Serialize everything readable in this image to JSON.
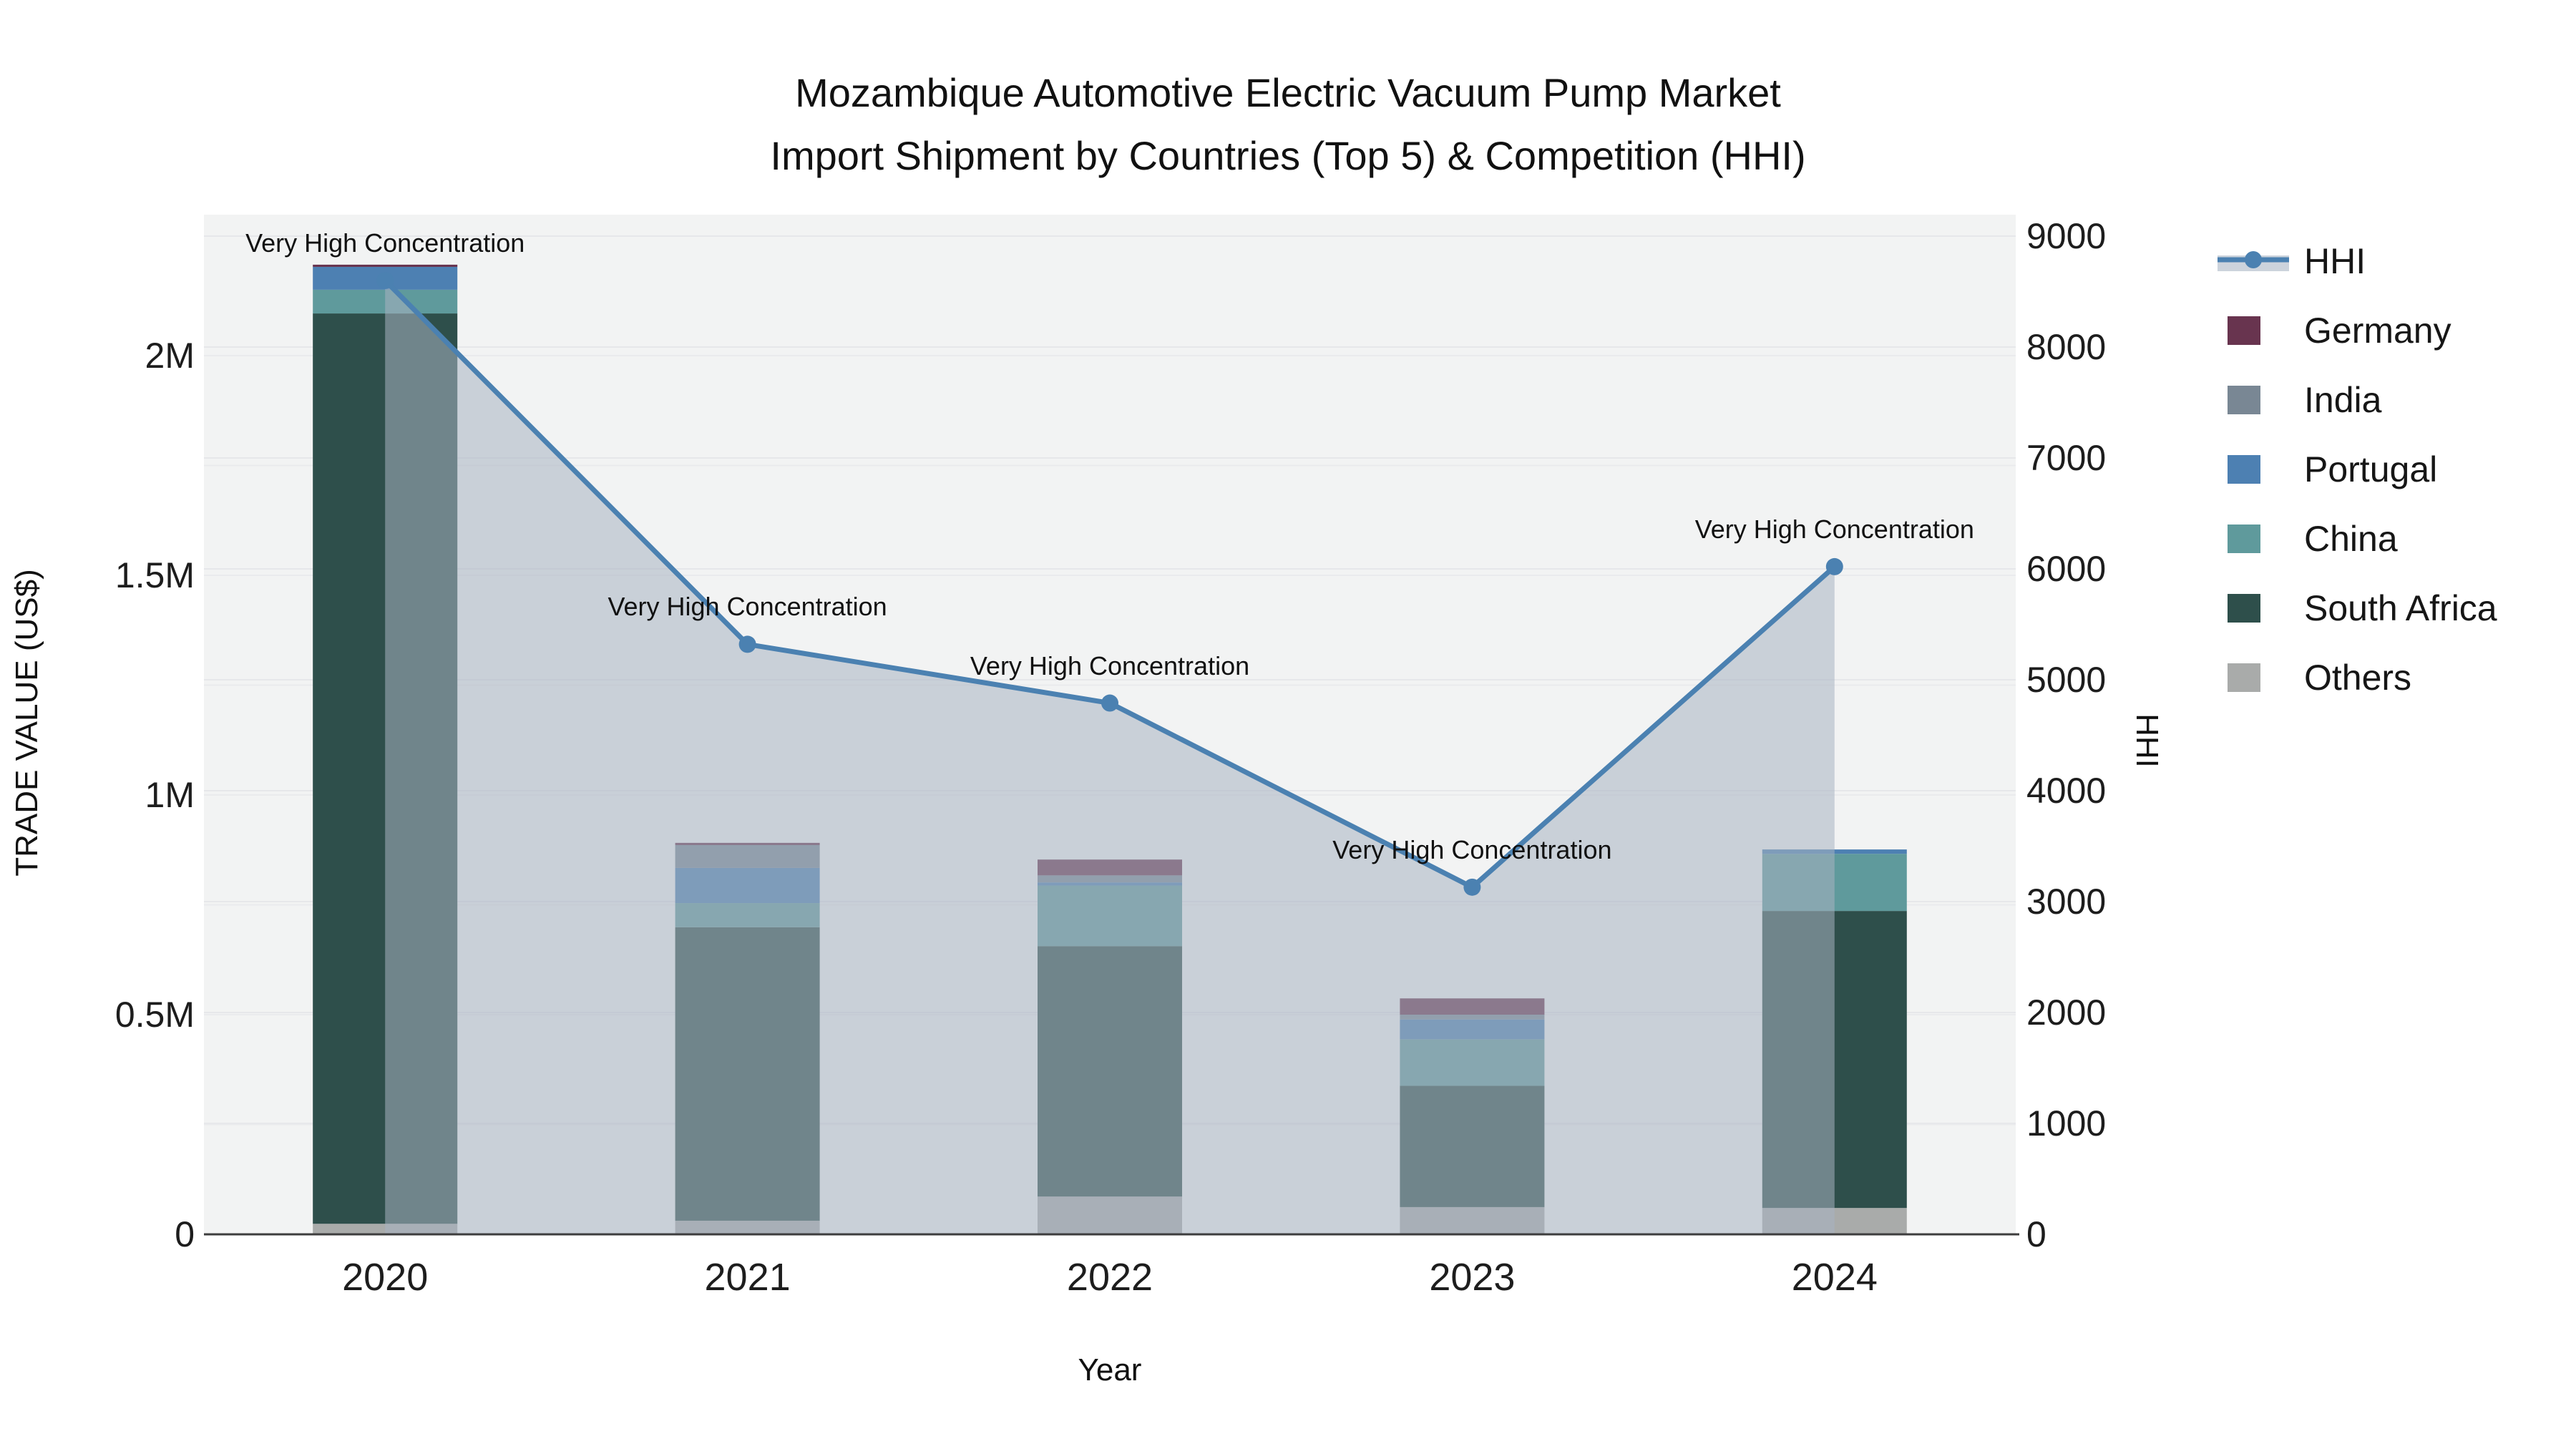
{
  "title": {
    "line1": "Mozambique Automotive Electric Vacuum Pump Market",
    "line2": "Import Shipment by Countries (Top 5) & Competition (HHI)"
  },
  "chart_data": {
    "type": "bar",
    "subtype": "stacked-bars-with-line-overlay",
    "categories": [
      "2020",
      "2021",
      "2022",
      "2023",
      "2024"
    ],
    "bar_series": [
      {
        "name": "Others",
        "color": "#a9abaa",
        "values": [
          24000,
          31000,
          86000,
          62000,
          60000
        ]
      },
      {
        "name": "South Africa",
        "color": "#2e4f4b",
        "values": [
          2072000,
          668000,
          570000,
          276000,
          676000
        ]
      },
      {
        "name": "China",
        "color": "#5f9a9c",
        "values": [
          54000,
          55000,
          138000,
          106000,
          130000
        ]
      },
      {
        "name": "Portugal",
        "color": "#4d80b2",
        "values": [
          52000,
          80000,
          7000,
          45000,
          10000
        ]
      },
      {
        "name": "India",
        "color": "#798794",
        "values": [
          0,
          52000,
          16000,
          11000,
          0
        ]
      },
      {
        "name": "Germany",
        "color": "#68344f",
        "values": [
          5000,
          5000,
          36000,
          37000,
          0
        ]
      }
    ],
    "line_series": {
      "name": "HHI",
      "color": "#4b81b1",
      "area_fill": "rgba(168,178,193,0.55)",
      "values": [
        8600,
        5320,
        4790,
        3130,
        6020
      ],
      "point_annotations": [
        "Very High Concentration",
        "Very High Concentration",
        "Very High Concentration",
        "Very High Concentration",
        "Very High Concentration"
      ]
    },
    "title": "Mozambique Automotive Electric Vacuum Pump Market Import Shipment by Countries (Top 5) & Competition (HHI)",
    "xlabel": "Year",
    "ylabel_left": "TRADE VALUE (US$)",
    "ylabel_right": "HHI",
    "ylim_left": [
      0,
      2320000
    ],
    "ylim_right": [
      0,
      9194
    ],
    "grid": true,
    "legend_position": "right"
  },
  "left_axis": {
    "title": "TRADE VALUE (US$)",
    "ticks": [
      {
        "label": "0",
        "value": 0
      },
      {
        "label": "0.5M",
        "value": 500000
      },
      {
        "label": "1M",
        "value": 1000000
      },
      {
        "label": "1.5M",
        "value": 1500000
      },
      {
        "label": "2M",
        "value": 2000000
      }
    ]
  },
  "right_axis": {
    "title": "HHI",
    "ticks": [
      {
        "label": "0",
        "value": 0
      },
      {
        "label": "1000",
        "value": 1000
      },
      {
        "label": "2000",
        "value": 2000
      },
      {
        "label": "3000",
        "value": 3000
      },
      {
        "label": "4000",
        "value": 4000
      },
      {
        "label": "5000",
        "value": 5000
      },
      {
        "label": "6000",
        "value": 6000
      },
      {
        "label": "7000",
        "value": 7000
      },
      {
        "label": "8000",
        "value": 8000
      },
      {
        "label": "9000",
        "value": 9000
      }
    ]
  },
  "x_axis": {
    "title": "Year",
    "ticks": [
      "2020",
      "2021",
      "2022",
      "2023",
      "2024"
    ]
  },
  "legend": {
    "items": [
      {
        "label": "HHI",
        "type": "line",
        "color": "#4b81b1",
        "band_color": "#ccd3dc"
      },
      {
        "label": "Germany",
        "type": "swatch",
        "color": "#68344f"
      },
      {
        "label": "India",
        "type": "swatch",
        "color": "#798794"
      },
      {
        "label": "Portugal",
        "type": "swatch",
        "color": "#4d80b2"
      },
      {
        "label": "China",
        "type": "swatch",
        "color": "#5f9a9c"
      },
      {
        "label": "South Africa",
        "type": "swatch",
        "color": "#2e4f4b"
      },
      {
        "label": "Others",
        "type": "swatch",
        "color": "#a9abaa"
      }
    ]
  },
  "colors": {
    "plot_background": "#f2f3f3",
    "grid_right": "#e6e7ea",
    "grid_left": "#eaebed",
    "axis_line": "#3d3d3d",
    "text": "#111111"
  }
}
